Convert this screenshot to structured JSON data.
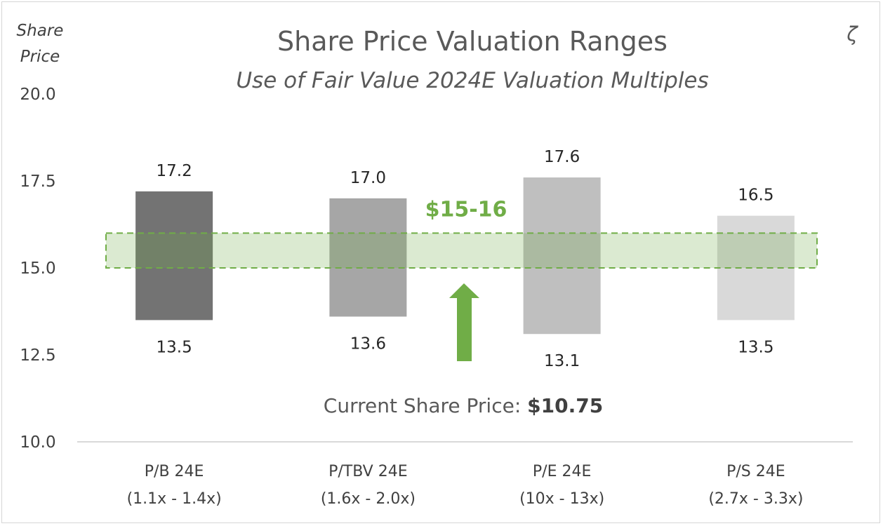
{
  "chart_data": {
    "type": "bar",
    "subtype": "floating-range",
    "title": "Share Price Valuation Ranges",
    "subtitle": "Use of Fair Value 2024E Valuation Multiples",
    "ylabel": "Share Price",
    "ylim": [
      10.0,
      20.0
    ],
    "yticks": [
      "10.0",
      "12.5",
      "15.0",
      "17.5",
      "20.0"
    ],
    "categories": [
      {
        "name": "P/B 24E",
        "range": "(1.1x - 1.4x)"
      },
      {
        "name": "P/TBV 24E",
        "range": "(1.6x - 2.0x)"
      },
      {
        "name": "P/E 24E",
        "range": "(10x - 13x)"
      },
      {
        "name": "P/S 24E",
        "range": "(2.7x - 3.3x)"
      }
    ],
    "series": [
      {
        "low": 13.5,
        "high": 17.2,
        "low_label": "13.5",
        "high_label": "17.2",
        "color": "#737373"
      },
      {
        "low": 13.6,
        "high": 17.0,
        "low_label": "13.6",
        "high_label": "17.0",
        "color": "#a6a6a6"
      },
      {
        "low": 13.1,
        "high": 17.6,
        "low_label": "13.1",
        "high_label": "17.6",
        "color": "#bfbfbf"
      },
      {
        "low": 13.5,
        "high": 16.5,
        "low_label": "13.5",
        "high_label": "16.5",
        "color": "#d9d9d9"
      }
    ],
    "target_band": {
      "low": 15.0,
      "high": 16.0,
      "label": "$15-16",
      "color": "#70ad47"
    },
    "current_price": {
      "label": "Current Share Price: ",
      "value": "$10.75"
    },
    "corner_mark": "ζ",
    "grid": false
  }
}
